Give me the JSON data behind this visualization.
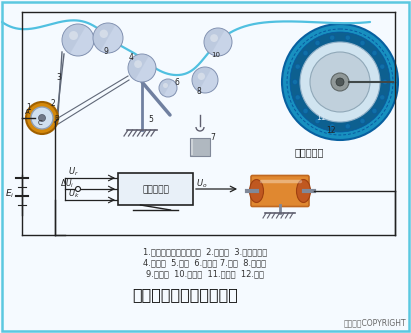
{
  "title": "布料张力测量及控制原理",
  "caption_line1": "1.电位器式角位移传感器  2.从动轮  3.同步齿形带",
  "caption_line2": "4.摆动轮  5.支架  6.摆动杆 7.砝码  8.张力辊",
  "caption_line3": "9.传动辊  10.传动辊  11.卷取辊  12.布料",
  "copyright": "东方仿真COPYRIGHT",
  "bg_color": "#f5faff",
  "border_color": "#5bc8e0",
  "servo_label": "伺服电动机",
  "amp_label": "功率放大器",
  "label_Ei": "E_i",
  "label_Ur": "U_r",
  "label_dUi": "\\u0394U_i",
  "label_Uk": "U_k",
  "label_Uo": "U_o",
  "roller_color_face": "#c8d4e8",
  "roller_color_edge": "#8090b0",
  "sensor_gold": "#d4880a",
  "sensor_inner": "#d0e0f0",
  "fabric_color": "#50c0e0",
  "weight_color": "#b0b8c0",
  "motor_orange": "#e08830",
  "motor_dark": "#c06820",
  "servo_blue": "#1890c0",
  "servo_mid": "#1070a0",
  "servo_light": "#d0e4f0",
  "line_color": "#222222",
  "text_color": "#222222",
  "amp_box_color": "#e8f0f8"
}
